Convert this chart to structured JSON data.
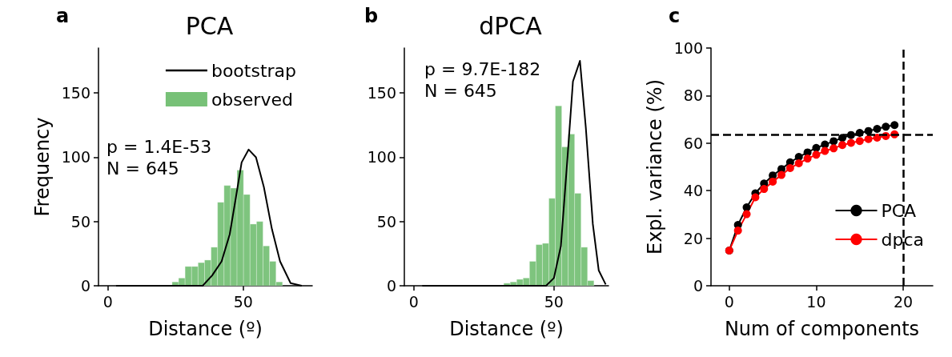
{
  "chart_data": [
    {
      "type": "histogram",
      "title": "PCA",
      "xlabel": "Distance (º)",
      "ylabel": "Frequency",
      "annotations": [
        "a",
        "p = 1.4E-53",
        "N = 645"
      ],
      "xlim": [
        -3.5,
        75.5
      ],
      "xticks": [
        0,
        50
      ],
      "ylim": [
        0,
        185
      ],
      "yticks": [
        0,
        50,
        100,
        150
      ],
      "grid": false,
      "legend": "top right",
      "series": [
        {
          "type": "line",
          "name": "bootstrap",
          "color": "#000000",
          "x": [
            3,
            35,
            38.5,
            42,
            45,
            47.3,
            49.4,
            52,
            54.7,
            57.6,
            60.6,
            63.6,
            67.5,
            71.6
          ],
          "values": [
            0,
            0,
            8,
            19,
            40,
            69,
            96,
            106,
            100,
            77,
            44,
            19,
            2,
            0
          ]
        },
        {
          "name": "observed",
          "color": "#77c177",
          "bins": [
            23.7,
            26.1,
            28.5,
            30.9,
            33.3,
            35.7,
            38.1,
            40.5,
            42.9,
            45.3,
            47.7,
            50.1,
            52.5,
            54.9,
            57.3,
            59.7,
            62.1,
            64.5
          ],
          "values": [
            3,
            6,
            15,
            15,
            18,
            20,
            30,
            65,
            78,
            76,
            90,
            71,
            48,
            50,
            31,
            19,
            3
          ]
        }
      ]
    },
    {
      "type": "histogram",
      "title": "dPCA",
      "xlabel": "Distance (º)",
      "annotations": [
        "b",
        "p = 9.7E-182",
        "N = 645"
      ],
      "xlim": [
        -3.4,
        69.5
      ],
      "xticks": [
        0,
        50
      ],
      "ylim": [
        0,
        185
      ],
      "yticks": [
        0,
        50,
        100,
        150
      ],
      "grid": false,
      "series": [
        {
          "type": "line",
          "color": "#000000",
          "x": [
            3,
            47.2,
            50,
            52.5,
            54.8,
            56.8,
            59.3,
            61.4,
            63.9,
            66,
            68.5
          ],
          "values": [
            0,
            0,
            6,
            31,
            98,
            159,
            175,
            123,
            48,
            12,
            1
          ]
        },
        {
          "color": "#77c177",
          "bins": [
            32.1,
            34.4,
            36.7,
            39.0,
            41.3,
            43.6,
            45.9,
            48.2,
            50.5,
            52.8,
            55.1,
            57.4,
            59.7,
            62.0,
            64.3
          ],
          "values": [
            2,
            3,
            5,
            6,
            19,
            32,
            33,
            68,
            140,
            108,
            118,
            72,
            30,
            4
          ]
        }
      ]
    },
    {
      "type": "line",
      "xlabel": "Num of components",
      "ylabel": "Expl. variance (%)",
      "annotations": [
        "c"
      ],
      "xlim": [
        -2.1,
        23.4
      ],
      "xticks": [
        0,
        10,
        20
      ],
      "ylim": [
        0,
        100
      ],
      "yticks": [
        0,
        20,
        40,
        60,
        80,
        100
      ],
      "grid": false,
      "legend": "bottom right",
      "marker": "circle",
      "line_style": "solid",
      "x": [
        0,
        1,
        2,
        3,
        4,
        5,
        6,
        7,
        8,
        9,
        10,
        11,
        12,
        13,
        14,
        15,
        16,
        17,
        18,
        19
      ],
      "series": [
        {
          "name": "PCA",
          "color": "#000000",
          "values": [
            14.8,
            25.6,
            33,
            38.9,
            43,
            46.4,
            49.1,
            51.9,
            54.2,
            56.1,
            58,
            59.4,
            60.8,
            62.2,
            63.4,
            64.3,
            65.1,
            66,
            66.9,
            67.6
          ]
        },
        {
          "name": "dpca",
          "color": "#ff0000",
          "values": [
            14.8,
            23.2,
            30.1,
            37.2,
            40.7,
            43.8,
            46.6,
            49.5,
            51.5,
            53.5,
            55.1,
            56.7,
            57.8,
            59.2,
            60.1,
            60.9,
            61.7,
            62.3,
            63,
            63.7
          ]
        }
      ],
      "ref_lines": [
        {
          "axis": "y",
          "value": 63.6,
          "color": "#000000",
          "line_style": "dashed"
        },
        {
          "axis": "x",
          "value": 20,
          "color": "#000000",
          "line_style": "dashed"
        }
      ]
    }
  ]
}
